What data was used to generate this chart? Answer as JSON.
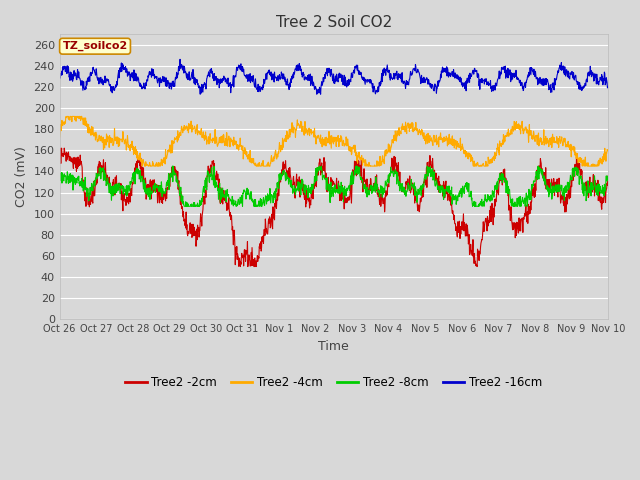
{
  "title": "Tree 2 Soil CO2",
  "xlabel": "Time",
  "ylabel": "CO2 (mV)",
  "ylim": [
    0,
    270
  ],
  "yticks": [
    0,
    20,
    40,
    60,
    80,
    100,
    120,
    140,
    160,
    180,
    200,
    220,
    240,
    260
  ],
  "bg_color": "#d8d8d8",
  "plot_bg_color": "#d8d8d8",
  "grid_color": "#ffffff",
  "legend_label": "TZ_soilco2",
  "series": [
    {
      "label": "Tree2 -2cm",
      "color": "#cc0000",
      "lw": 0.8
    },
    {
      "label": "Tree2 -4cm",
      "color": "#ffaa00",
      "lw": 0.8
    },
    {
      "label": "Tree2 -8cm",
      "color": "#00cc00",
      "lw": 0.8
    },
    {
      "label": "Tree2 -16cm",
      "color": "#0000cc",
      "lw": 0.8
    }
  ],
  "xtick_labels": [
    "Oct 26",
    "Oct 27",
    "Oct 28",
    "Oct 29",
    "Oct 30",
    "Oct 31",
    "Nov 1",
    "Nov 2",
    "Nov 3",
    "Nov 4",
    "Nov 5",
    "Nov 6",
    "Nov 7",
    "Nov 8",
    "Nov 9",
    "Nov 10"
  ],
  "n_points": 1440,
  "seed": 7
}
